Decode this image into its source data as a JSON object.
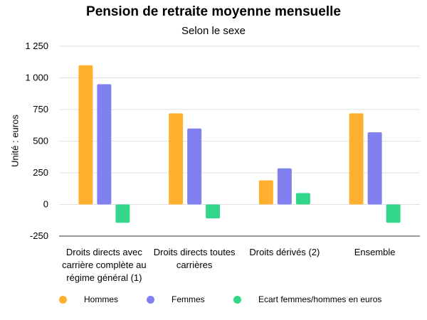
{
  "chart_data": {
    "type": "bar",
    "title": "Pension de retraite moyenne mensuelle",
    "subtitle": "Selon le sexe",
    "ylabel": "Unité : euros",
    "xlabel": "",
    "ylim": [
      -250,
      1250
    ],
    "yticks": [
      -250,
      0,
      250,
      500,
      750,
      1000,
      1250
    ],
    "ytick_labels": [
      "-250",
      "0",
      "250",
      "500",
      "750",
      "1 000",
      "1 250"
    ],
    "grid": true,
    "legend_position": "bottom",
    "categories": [
      "Droits directs avec carrière complète au régime général (1)",
      "Droits directs toutes carrières",
      "Droits dérivés (2)",
      "Ensemble"
    ],
    "series": [
      {
        "name": "Hommes",
        "color": "#FFB02E",
        "values": [
          1100,
          720,
          190,
          720
        ]
      },
      {
        "name": "Femmes",
        "color": "#8080F0",
        "values": [
          950,
          600,
          285,
          570
        ]
      },
      {
        "name": "Ecart femmes/hommes en euros",
        "color": "#33D68A",
        "values": [
          -145,
          -110,
          90,
          -145
        ]
      }
    ]
  }
}
